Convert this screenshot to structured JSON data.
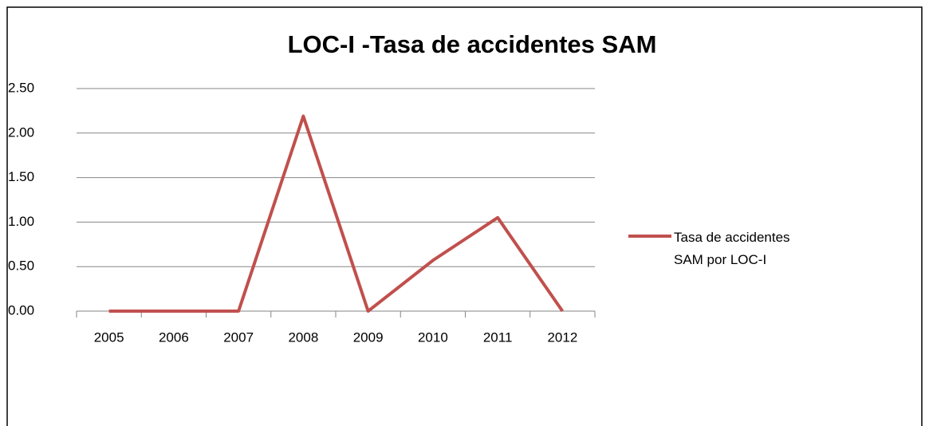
{
  "chart_data": {
    "type": "line",
    "title": "LOC-I -Tasa de accidentes SAM",
    "categories": [
      "2005",
      "2006",
      "2007",
      "2008",
      "2009",
      "2010",
      "2011",
      "2012"
    ],
    "series": [
      {
        "name": "Tasa de accidentes SAM por LOC-I",
        "color": "#c0504d",
        "values": [
          0,
          0,
          0,
          2.19,
          0,
          0.57,
          1.05,
          0
        ]
      }
    ],
    "ylim": [
      0,
      2.5
    ],
    "yticks": [
      {
        "value": 0,
        "label": "0.00"
      },
      {
        "value": 0.5,
        "label": "0.50"
      },
      {
        "value": 1,
        "label": "1.00"
      },
      {
        "value": 1.5,
        "label": "1.50"
      },
      {
        "value": 2,
        "label": "2.00"
      },
      {
        "value": 2.5,
        "label": "2.50"
      }
    ],
    "grid": true,
    "legend": "right"
  }
}
